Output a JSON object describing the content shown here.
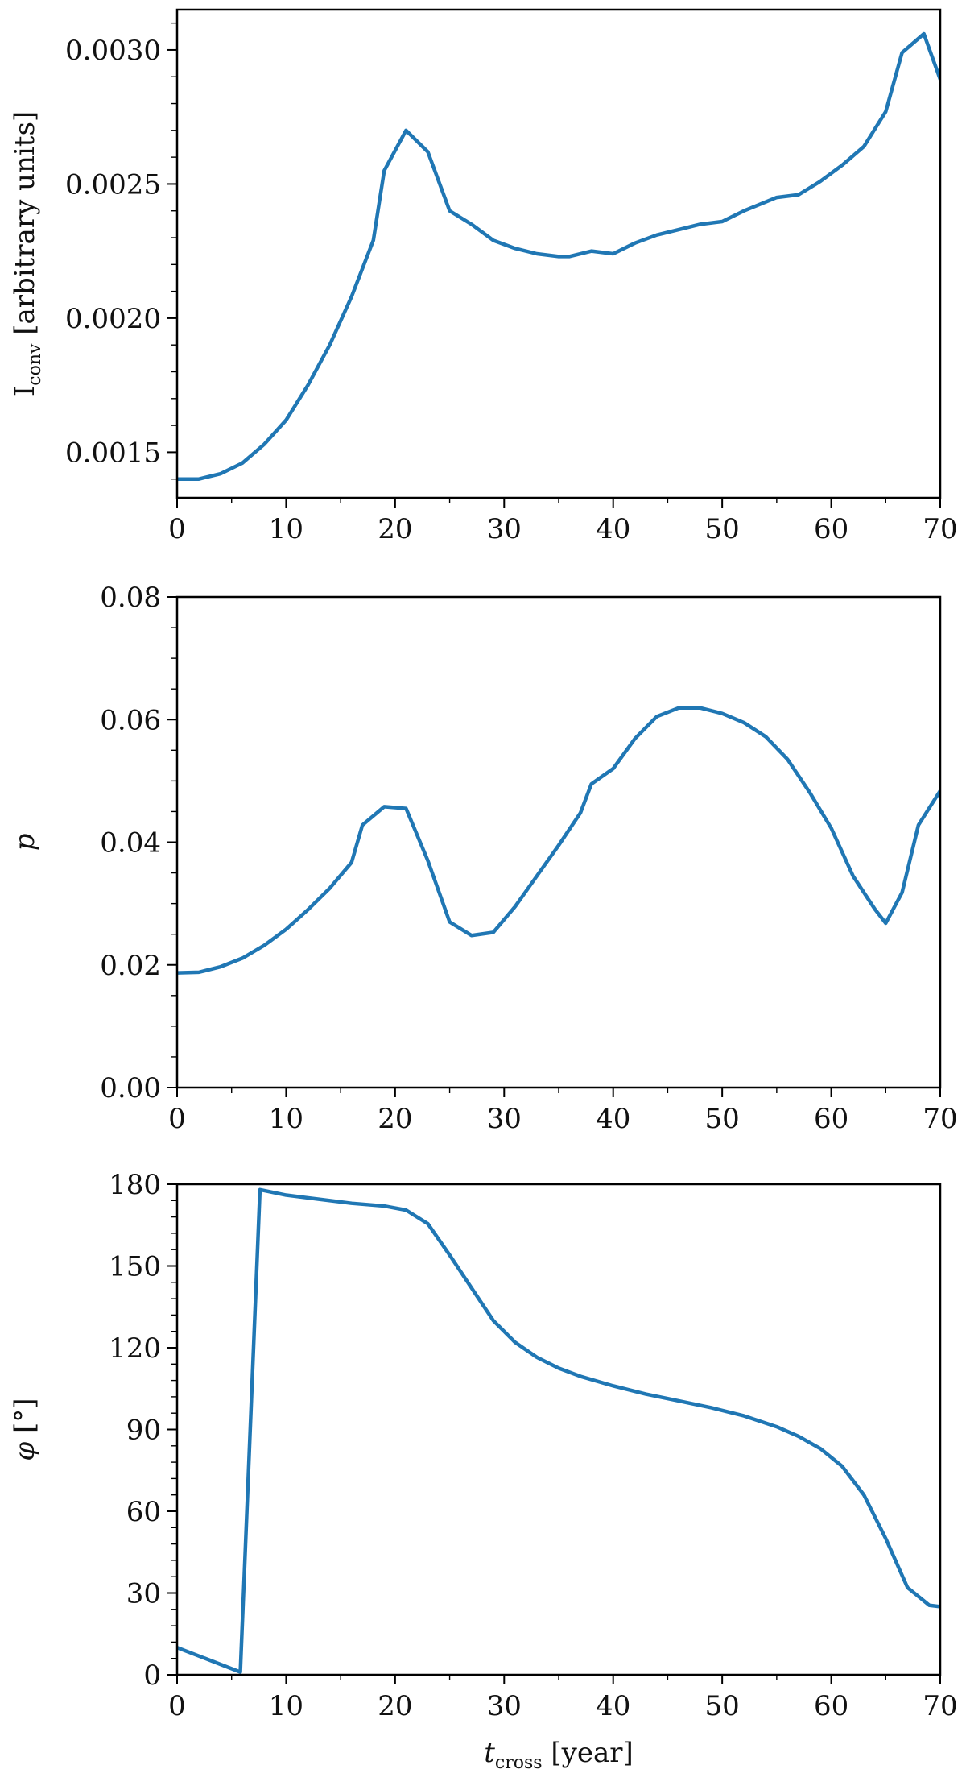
{
  "chart_data": [
    {
      "type": "line",
      "xlabel_main": "",
      "xlabel_sub": "",
      "xlabel_unit": "",
      "ylabel_main": "I",
      "ylabel_sub": "conv",
      "ylabel_unit": " [arbitrary units]",
      "xlim": [
        0,
        70
      ],
      "ylim": [
        0.00133,
        0.00315
      ],
      "xticks": [
        0,
        10,
        20,
        30,
        40,
        50,
        60,
        70
      ],
      "yticks": [
        0.0015,
        0.002,
        0.0025,
        0.003
      ],
      "ytick_labels": [
        "0.0015",
        "0.0020",
        "0.0025",
        "0.0030"
      ],
      "minor_per_major": 5,
      "color": "#2077b4",
      "series": [
        {
          "x": [
            0,
            2,
            4,
            6,
            8,
            10,
            12,
            14,
            16,
            18,
            19,
            21,
            23,
            25,
            27,
            29,
            31,
            33,
            35,
            36,
            38,
            40,
            42,
            44,
            46,
            48,
            50,
            52,
            55,
            57,
            59,
            61,
            63,
            65,
            66.5,
            68.5,
            70
          ],
          "y": [
            0.0014,
            0.0014,
            0.00142,
            0.00146,
            0.00153,
            0.00162,
            0.00175,
            0.0019,
            0.00208,
            0.00229,
            0.00255,
            0.0027,
            0.00262,
            0.0024,
            0.00235,
            0.00229,
            0.00226,
            0.00224,
            0.00223,
            0.00223,
            0.00225,
            0.00224,
            0.00228,
            0.00231,
            0.00233,
            0.00235,
            0.00236,
            0.0024,
            0.00245,
            0.00246,
            0.00251,
            0.00257,
            0.00264,
            0.00277,
            0.00299,
            0.00306,
            0.00289
          ]
        }
      ]
    },
    {
      "type": "line",
      "xlabel_main": "",
      "xlabel_sub": "",
      "xlabel_unit": "",
      "ylabel_main": "p",
      "ylabel_sub": "",
      "ylabel_unit": "",
      "xlim": [
        0,
        70
      ],
      "ylim": [
        0,
        0.08
      ],
      "xticks": [
        0,
        10,
        20,
        30,
        40,
        50,
        60,
        70
      ],
      "yticks": [
        0,
        0.02,
        0.04,
        0.06,
        0.08
      ],
      "ytick_labels": [
        "0.00",
        "0.02",
        "0.04",
        "0.06",
        "0.08"
      ],
      "minor_per_major": 4,
      "color": "#2077b4",
      "series": [
        {
          "x": [
            0,
            2,
            4,
            6,
            8,
            10,
            12,
            14,
            16,
            17,
            19,
            21,
            23,
            25,
            27,
            29,
            31,
            33,
            35,
            37,
            38,
            40,
            42,
            44,
            46,
            48,
            50,
            52,
            54,
            56,
            58,
            60,
            62,
            64,
            65,
            66.5,
            68,
            70
          ],
          "y": [
            0.0187,
            0.0188,
            0.0197,
            0.0211,
            0.0232,
            0.0258,
            0.029,
            0.0325,
            0.0367,
            0.0428,
            0.0458,
            0.0455,
            0.037,
            0.027,
            0.0248,
            0.0253,
            0.0295,
            0.0345,
            0.0395,
            0.0448,
            0.0495,
            0.052,
            0.0569,
            0.0605,
            0.0619,
            0.0619,
            0.061,
            0.0595,
            0.0572,
            0.0535,
            0.0482,
            0.0423,
            0.0345,
            0.0291,
            0.0268,
            0.0318,
            0.0428,
            0.0484
          ]
        }
      ]
    },
    {
      "type": "line",
      "xlabel_main": "t",
      "xlabel_sub": "cross",
      "xlabel_unit": " [year]",
      "ylabel_main": "φ",
      "ylabel_sub": "",
      "ylabel_unit": " [°]",
      "xlim": [
        0,
        70
      ],
      "ylim": [
        0,
        180
      ],
      "xticks": [
        0,
        10,
        20,
        30,
        40,
        50,
        60,
        70
      ],
      "yticks": [
        0,
        30,
        60,
        90,
        120,
        150,
        180
      ],
      "ytick_labels": [
        "0",
        "30",
        "60",
        "90",
        "120",
        "150",
        "180"
      ],
      "minor_per_major": 5,
      "color": "#2077b4",
      "series": [
        {
          "x": [
            0,
            5.8,
            7.6,
            10,
            13,
            16,
            19,
            21,
            23,
            25,
            27,
            29,
            31,
            33,
            35,
            37,
            40,
            43,
            46,
            49,
            52,
            55,
            57,
            59,
            61,
            63,
            65,
            67,
            69,
            70
          ],
          "y": [
            10,
            1,
            178,
            176,
            174.5,
            173,
            172,
            170.5,
            165.5,
            154,
            142,
            130,
            122,
            116.5,
            112.5,
            109.5,
            106,
            103,
            100.5,
            98,
            95,
            91,
            87.5,
            83,
            76.5,
            66,
            50,
            32,
            25.5,
            25
          ]
        }
      ]
    }
  ]
}
